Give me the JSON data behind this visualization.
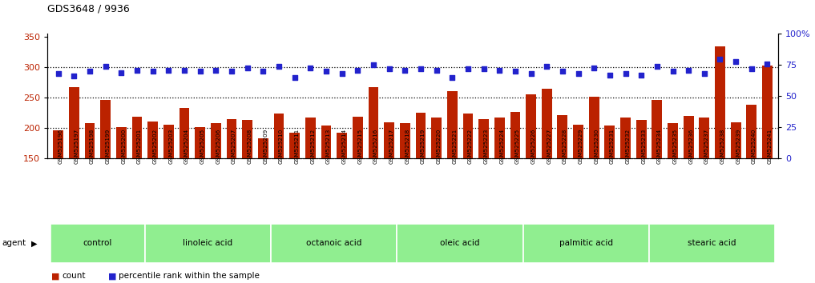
{
  "title": "GDS3648 / 9936",
  "categories": [
    "GSM525196",
    "GSM525197",
    "GSM525198",
    "GSM525199",
    "GSM525200",
    "GSM525201",
    "GSM525202",
    "GSM525203",
    "GSM525204",
    "GSM525205",
    "GSM525206",
    "GSM525207",
    "GSM525208",
    "GSM525209",
    "GSM525210",
    "GSM525211",
    "GSM525212",
    "GSM525213",
    "GSM525214",
    "GSM525215",
    "GSM525216",
    "GSM525217",
    "GSM525218",
    "GSM525219",
    "GSM525220",
    "GSM525221",
    "GSM525222",
    "GSM525223",
    "GSM525224",
    "GSM525225",
    "GSM525226",
    "GSM525227",
    "GSM525228",
    "GSM525229",
    "GSM525230",
    "GSM525231",
    "GSM525232",
    "GSM525233",
    "GSM525234",
    "GSM525235",
    "GSM525236",
    "GSM525237",
    "GSM525238",
    "GSM525239",
    "GSM525240",
    "GSM525241"
  ],
  "bar_values": [
    197,
    267,
    208,
    246,
    201,
    219,
    211,
    205,
    233,
    201,
    208,
    215,
    214,
    183,
    224,
    193,
    218,
    204,
    193,
    219,
    267,
    209,
    208,
    225,
    218,
    261,
    224,
    215,
    218,
    226,
    255,
    265,
    222,
    205,
    252,
    204,
    218,
    213,
    247,
    208,
    220,
    218,
    334,
    210,
    239,
    303
  ],
  "dot_values_pct": [
    68,
    66,
    70,
    74,
    69,
    71,
    70,
    71,
    71,
    70,
    71,
    70,
    73,
    70,
    74,
    65,
    73,
    70,
    68,
    71,
    75,
    72,
    71,
    72,
    71,
    65,
    72,
    72,
    71,
    70,
    68,
    74,
    70,
    68,
    73,
    67,
    68,
    67,
    74,
    70,
    71,
    68,
    80,
    78,
    72,
    76
  ],
  "groups": [
    {
      "label": "control",
      "start": 0,
      "end": 6
    },
    {
      "label": "linoleic acid",
      "start": 6,
      "end": 14
    },
    {
      "label": "octanoic acid",
      "start": 14,
      "end": 22
    },
    {
      "label": "oleic acid",
      "start": 22,
      "end": 30
    },
    {
      "label": "palmitic acid",
      "start": 30,
      "end": 38
    },
    {
      "label": "stearic acid",
      "start": 38,
      "end": 46
    }
  ],
  "bar_color": "#bb2200",
  "dot_color": "#2222cc",
  "left_ylim": [
    150,
    355
  ],
  "right_ylim": [
    0,
    100
  ],
  "left_yticks": [
    150,
    200,
    250,
    300,
    350
  ],
  "right_yticks": [
    0,
    25,
    50,
    75,
    100
  ],
  "right_yticklabels": [
    "0",
    "25",
    "50",
    "75",
    "100%"
  ],
  "hline_values": [
    200,
    250,
    300
  ],
  "group_color": "#90ee90",
  "group_border_color": "white",
  "xtick_bg": "#d8d8d8"
}
